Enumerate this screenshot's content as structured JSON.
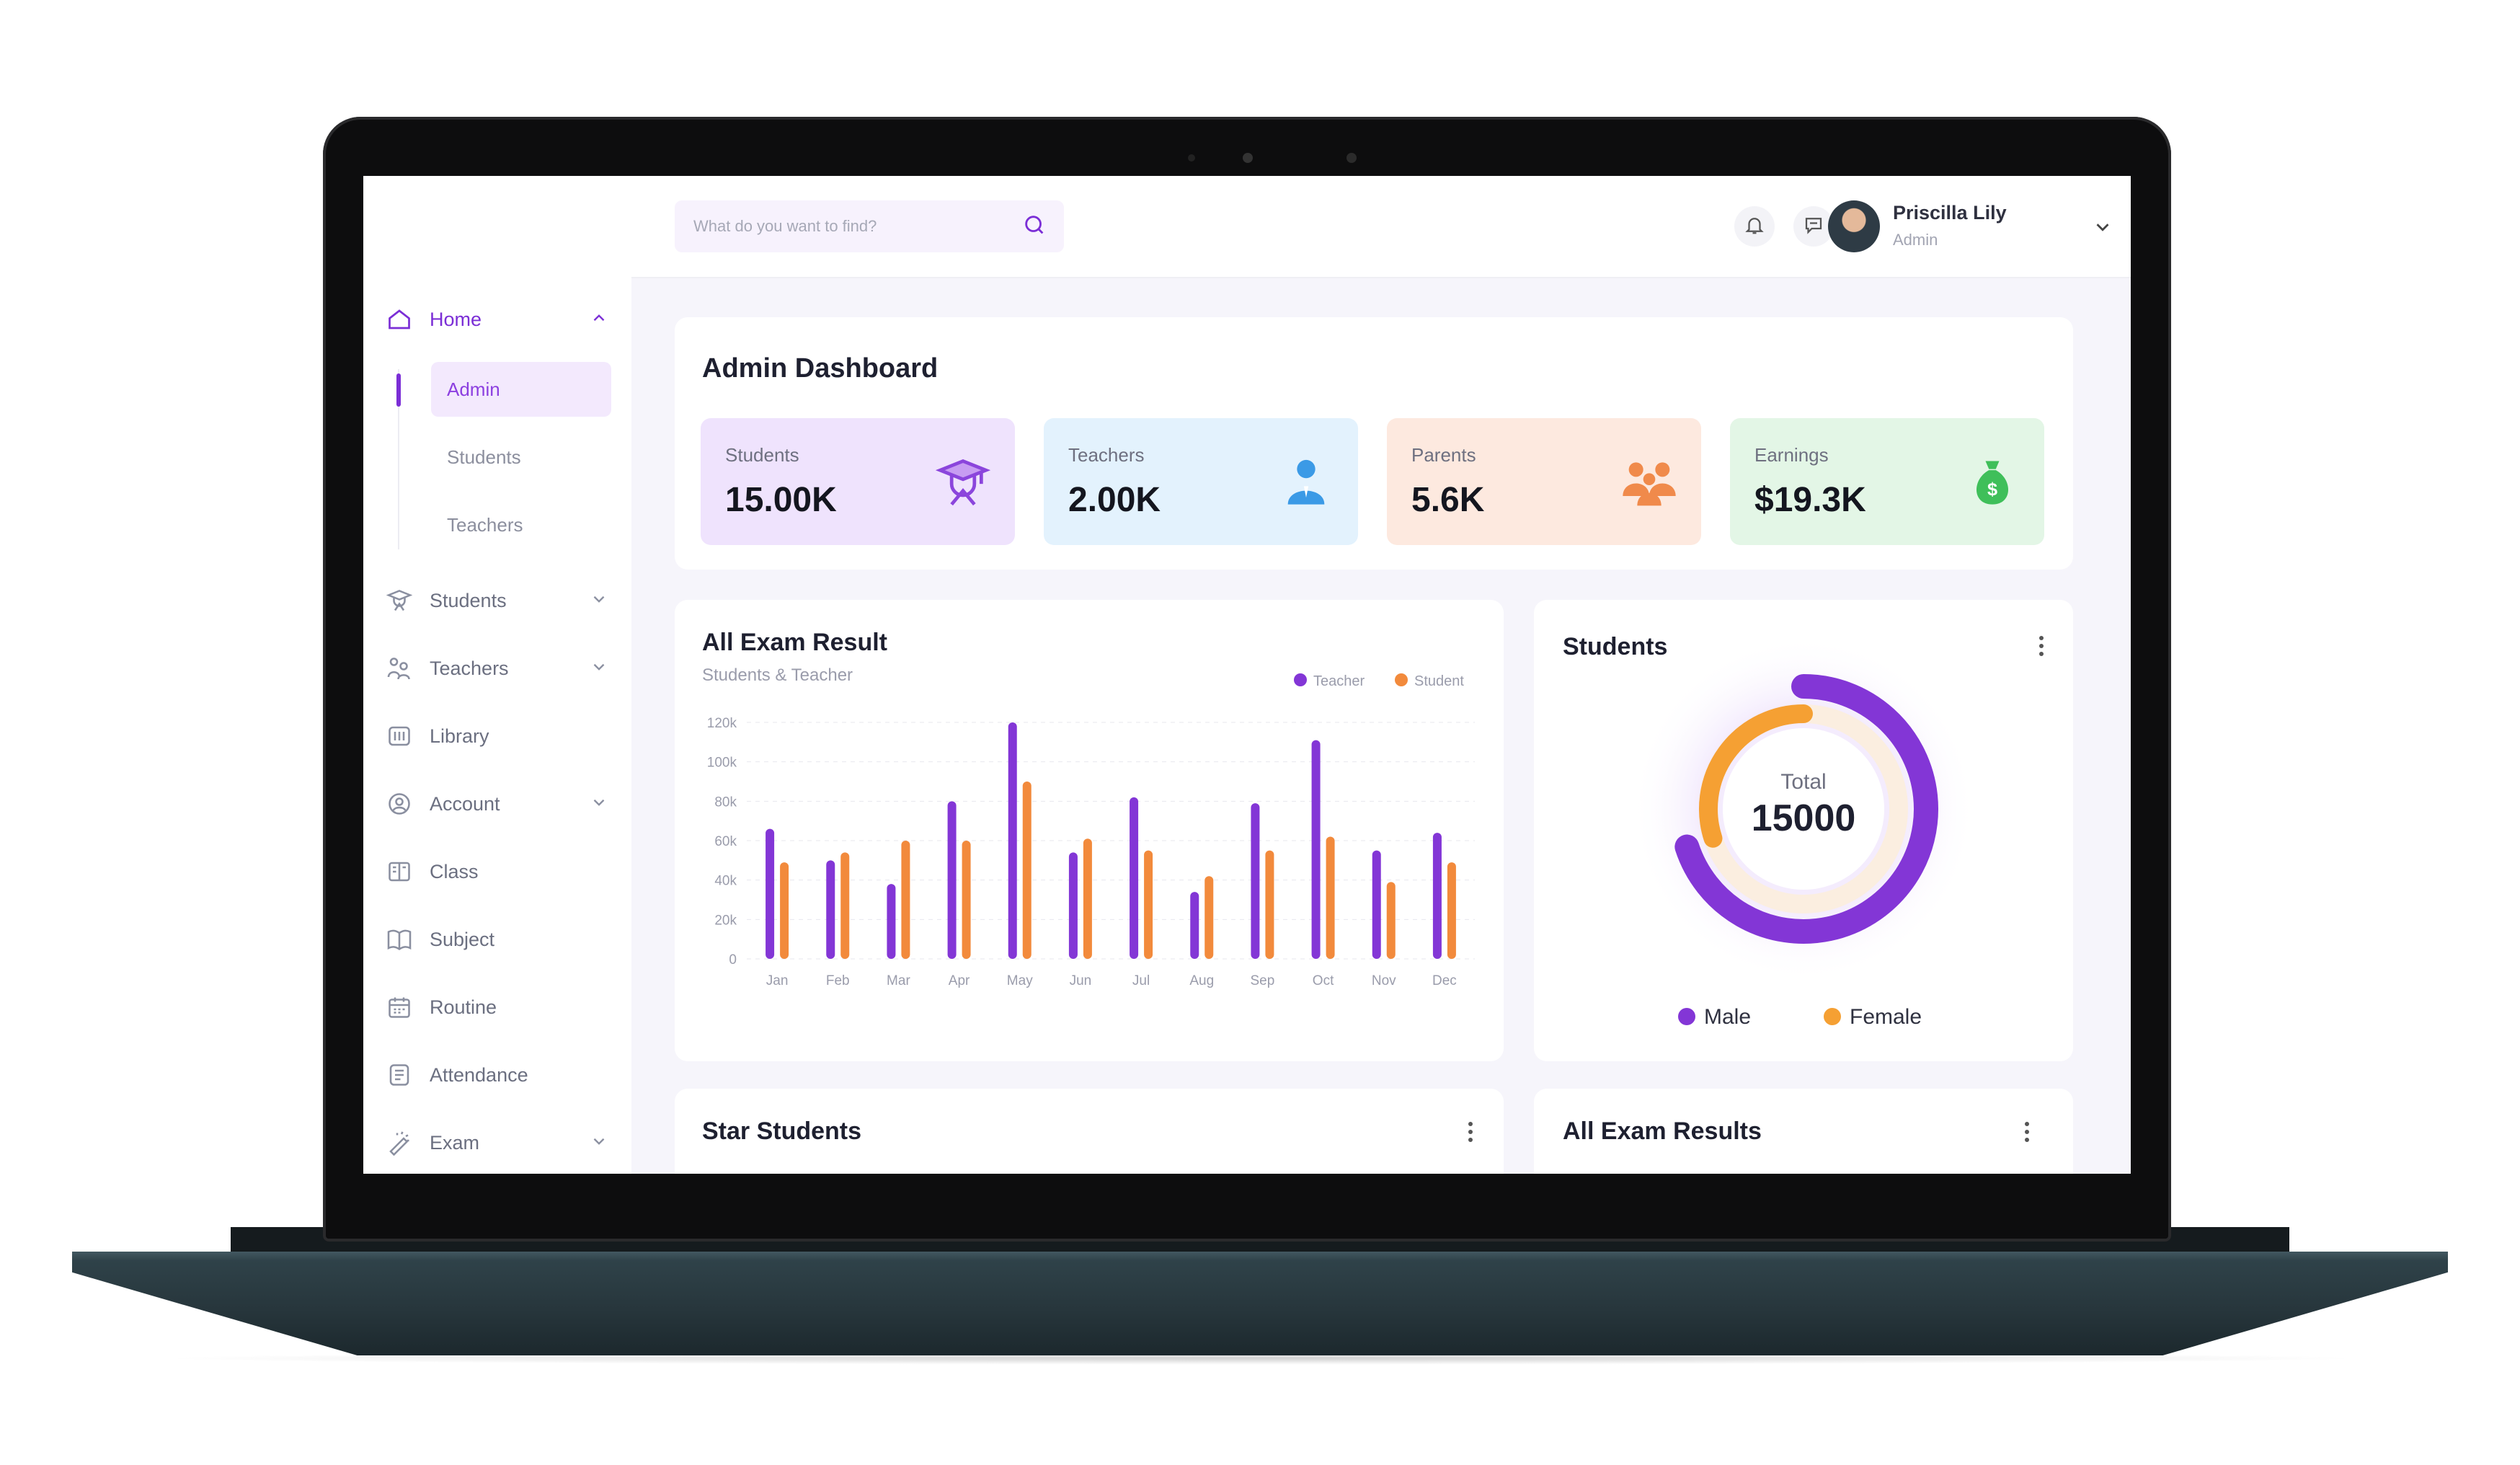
{
  "search": {
    "placeholder": "What do you want to find?"
  },
  "user": {
    "name": "Priscilla Lily",
    "role": "Admin"
  },
  "sidebar": {
    "items": [
      {
        "label": "Home",
        "icon": "home-icon",
        "expanded": true,
        "active": true
      },
      {
        "label": "Students",
        "icon": "student-icon",
        "has_children": true
      },
      {
        "label": "Teachers",
        "icon": "teacher-icon",
        "has_children": true
      },
      {
        "label": "Library",
        "icon": "library-icon"
      },
      {
        "label": "Account",
        "icon": "account-icon",
        "has_children": true
      },
      {
        "label": "Class",
        "icon": "class-icon"
      },
      {
        "label": "Subject",
        "icon": "book-icon"
      },
      {
        "label": "Routine",
        "icon": "calendar-icon"
      },
      {
        "label": "Attendance",
        "icon": "attendance-icon"
      },
      {
        "label": "Exam",
        "icon": "exam-icon",
        "has_children": true
      }
    ],
    "home_sub": [
      "Admin",
      "Students",
      "Teachers"
    ],
    "active_sub": "Admin"
  },
  "dashboard": {
    "title": "Admin Dashboard",
    "stats": [
      {
        "label": "Students",
        "value": "15.00K",
        "icon": "graduate-icon",
        "bg": "#efe3fd",
        "color": "#8b45dc"
      },
      {
        "label": "Teachers",
        "value": "2.00K",
        "icon": "teacher-person-icon",
        "bg": "#e3f2fd",
        "color": "#3b9ae6"
      },
      {
        "label": "Parents",
        "value": "5.6K",
        "icon": "parents-group-icon",
        "bg": "#fde9df",
        "color": "#f08a4b"
      },
      {
        "label": "Earnings",
        "value": "$19.3K",
        "icon": "money-bag-icon",
        "bg": "#e3f6e6",
        "color": "#3fbf5a"
      }
    ]
  },
  "exam_chart": {
    "title": "All Exam Result",
    "subtitle": "Students & Teacher",
    "legend": [
      "Teacher",
      "Student"
    ],
    "colors": {
      "Teacher": "#8336d6",
      "Student": "#f28a3c"
    }
  },
  "students_chart": {
    "title": "Students",
    "center_label": "Total",
    "center_value": "15000",
    "legend": [
      "Male",
      "Female"
    ],
    "colors": {
      "Male": "#8336d6",
      "Female": "#f5a033"
    }
  },
  "bottom": {
    "left_title": "Star Students",
    "right_title": "All Exam Results"
  },
  "chart_data": [
    {
      "type": "bar",
      "title": "All Exam Result",
      "subtitle": "Students & Teacher",
      "categories": [
        "Jan",
        "Feb",
        "Mar",
        "Apr",
        "May",
        "Jun",
        "Jul",
        "Aug",
        "Sep",
        "Oct",
        "Nov",
        "Dec"
      ],
      "series": [
        {
          "name": "Teacher",
          "values": [
            66000,
            50000,
            38000,
            80000,
            120000,
            54000,
            82000,
            34000,
            79000,
            111000,
            55000,
            64000
          ]
        },
        {
          "name": "Student",
          "values": [
            49000,
            54000,
            60000,
            60000,
            90000,
            61000,
            55000,
            42000,
            55000,
            62000,
            39000,
            49000
          ]
        }
      ],
      "yticks": [
        "0",
        "20k",
        "40k",
        "60k",
        "80k",
        "100k",
        "120k"
      ],
      "ylim": [
        0,
        120000
      ],
      "grid": true,
      "legend_position": "top-right"
    },
    {
      "type": "pie",
      "title": "Students",
      "categories": [
        "Male",
        "Female"
      ],
      "values": [
        70,
        30
      ],
      "total": 15000,
      "legend_position": "bottom"
    }
  ]
}
